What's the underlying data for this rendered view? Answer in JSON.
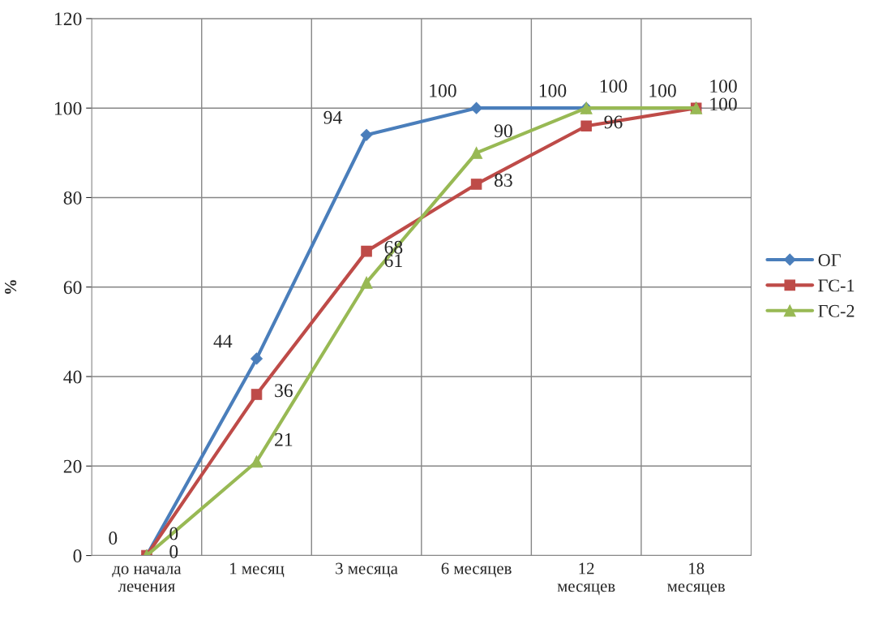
{
  "chart_data": {
    "type": "line",
    "ylabel": "%",
    "categories": [
      "до начала\nлечения",
      "1 месяц",
      "3 месяца",
      "6 месяцев",
      "12\nмесяцев",
      "18\nмесяцев"
    ],
    "series": [
      {
        "name": "ОГ",
        "color": "#4a7ebb",
        "marker": "diamond",
        "values": [
          0,
          44,
          94,
          100,
          100,
          100
        ]
      },
      {
        "name": "ГС-1",
        "color": "#be4b48",
        "marker": "square",
        "values": [
          0,
          36,
          68,
          83,
          96,
          100
        ]
      },
      {
        "name": "ГС-2",
        "color": "#98b954",
        "marker": "triangle",
        "values": [
          0,
          21,
          61,
          90,
          100,
          100
        ]
      }
    ],
    "ylim": [
      0,
      120
    ],
    "yticks": [
      0,
      20,
      40,
      60,
      80,
      100,
      120
    ],
    "grid": true,
    "legend": "right",
    "data_labels": true,
    "line_style": "solid"
  }
}
